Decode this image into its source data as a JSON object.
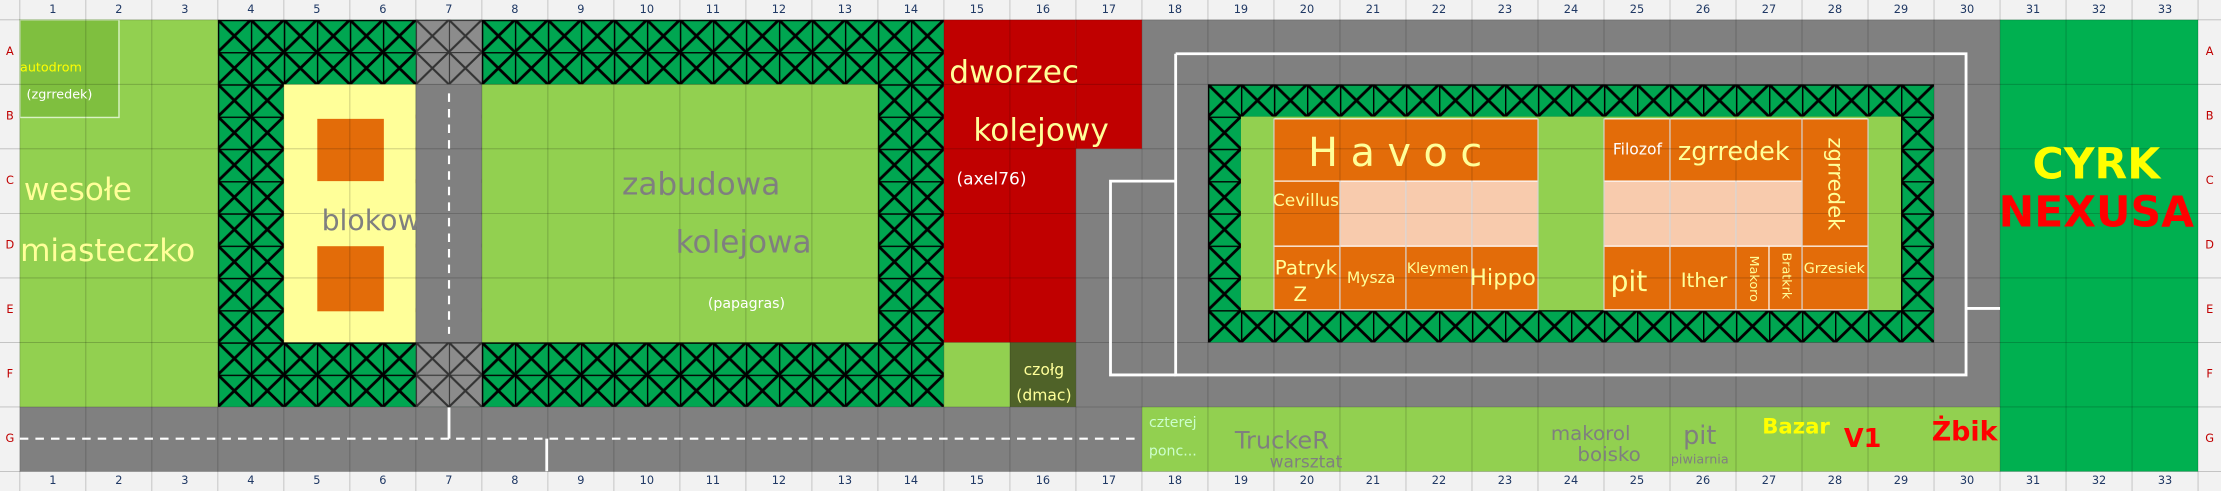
{
  "columns": [
    1,
    2,
    3,
    4,
    5,
    6,
    7,
    8,
    9,
    10,
    11,
    12,
    13,
    14,
    15,
    16,
    17,
    18,
    19,
    20,
    21,
    22,
    23,
    24,
    25,
    26,
    27,
    28,
    29,
    30,
    31,
    32,
    33
  ],
  "rows": [
    "A",
    "B",
    "C",
    "D",
    "E",
    "F",
    "G"
  ],
  "labels": {
    "autodrom": "autodrom",
    "autodrom_owner": "(zgrredek)",
    "fair_1": "wesołe",
    "fair_2": "miasteczko",
    "blocks": "blokow",
    "rail_1": "zabudowa",
    "rail_2": "kolejowa",
    "rail_owner": "(papagras)",
    "station_1": "dworzec",
    "station_2": "kolejowy",
    "station_owner": "(axel76)",
    "tank": "czołg",
    "tank_owner": "(dmac)",
    "havoc": "H a v o c",
    "filozof": "Filozof",
    "zgrredek": "zgrredek",
    "zgrredek_vertical": "zgrredek",
    "cevillus": "Cevillus",
    "patryk_1": "Patryk",
    "patryk_2": "Z",
    "mysza": "Mysza",
    "kleymen": "Kleymen",
    "hippo": "Hippo",
    "pit": "pit",
    "ither": "Ither",
    "makoro": "Makoro",
    "bratkrk": "Bratkrk",
    "grzesiek": "Grzesiek",
    "circus_1": "CYRK",
    "circus_2": "NEXUSA",
    "czterej_1": "czterej",
    "czterej_2": "ponc...",
    "trucker": "TruckeR",
    "workshop": "warsztat",
    "makorol": "makorol",
    "pitch": "boisko",
    "pit_2": "pit",
    "pub": "piwiarnia",
    "bazar": "Bazar",
    "v1": "V1",
    "zbik": "Żbik"
  }
}
